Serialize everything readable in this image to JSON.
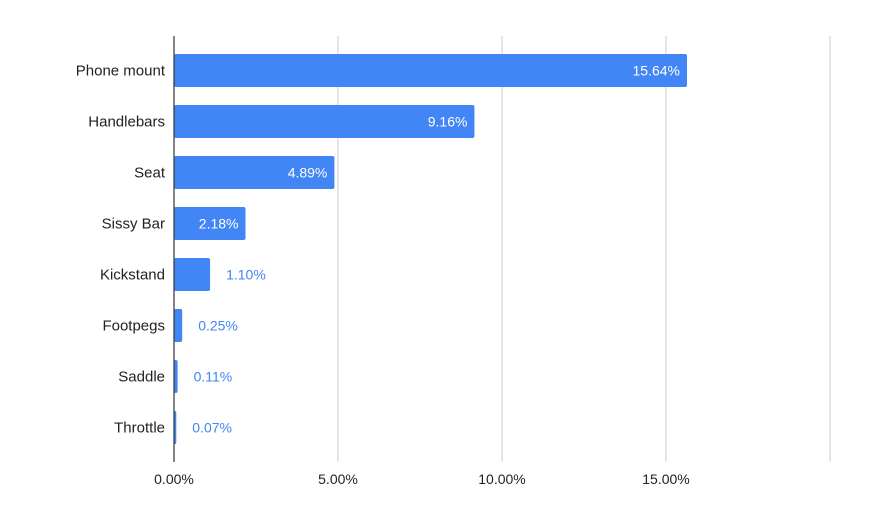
{
  "chart_data": {
    "type": "bar",
    "orientation": "horizontal",
    "categories": [
      "Phone mount",
      "Handlebars",
      "Seat",
      "Sissy Bar",
      "Kickstand",
      "Footpegs",
      "Saddle",
      "Throttle"
    ],
    "values": [
      15.64,
      9.16,
      4.89,
      2.18,
      1.1,
      0.25,
      0.11,
      0.07
    ],
    "data_labels": [
      "15.64%",
      "9.16%",
      "4.89%",
      "2.18%",
      "1.10%",
      "0.25%",
      "0.11%",
      "0.07%"
    ],
    "x_ticks": [
      0,
      5,
      10,
      15,
      20
    ],
    "x_tick_labels": [
      "0.00%",
      "5.00%",
      "10.00%",
      "15.00%",
      ""
    ],
    "xlim": [
      0,
      20
    ],
    "grid": true,
    "legend": "none",
    "colors": {
      "bar": "#4285f4",
      "label_inside": "#ffffff",
      "label_outside": "#4285f4",
      "grid": "#cccccc",
      "axis": "#333333"
    }
  }
}
